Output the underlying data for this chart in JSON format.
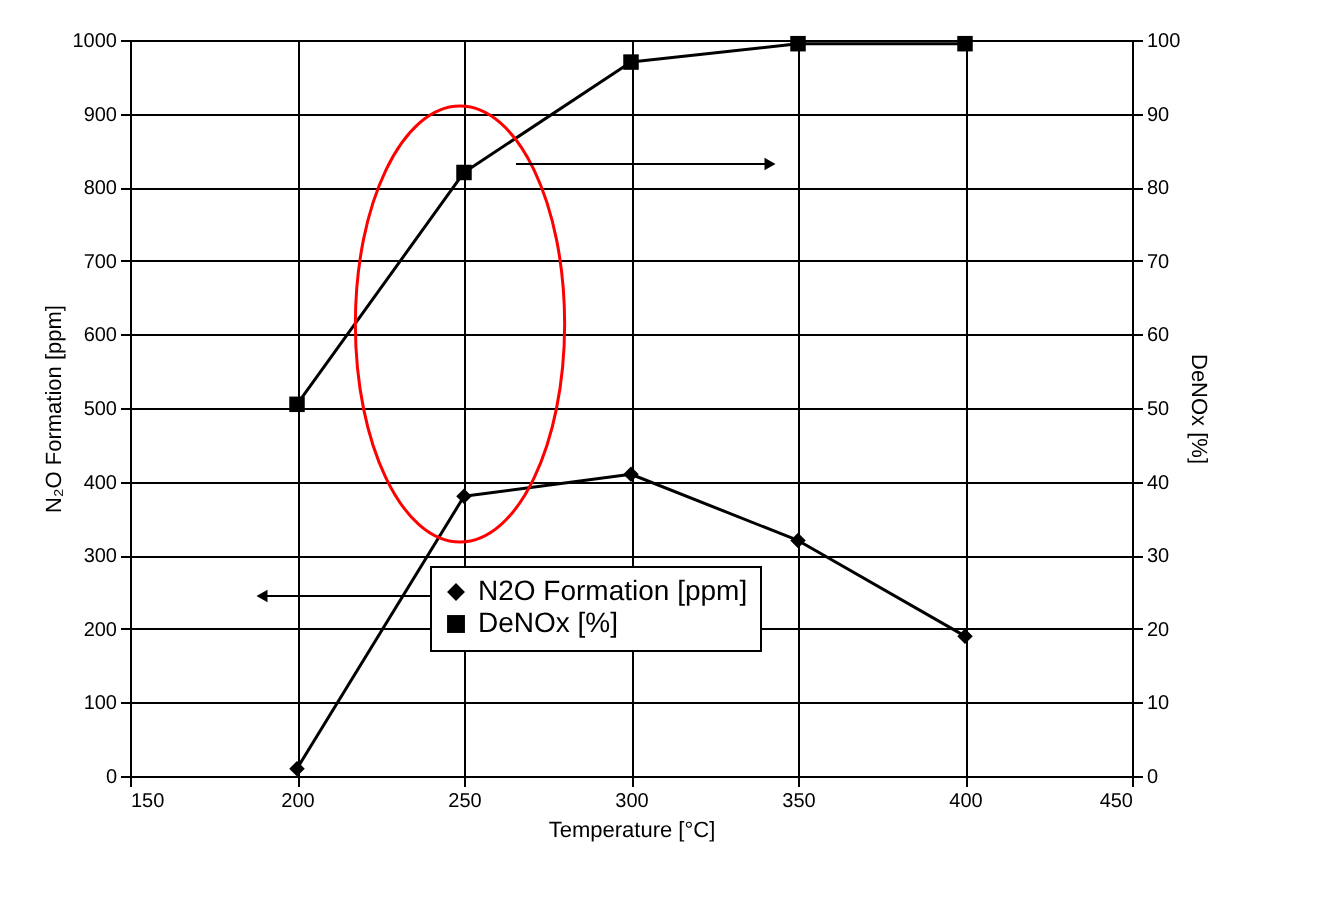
{
  "chart_data": {
    "type": "line",
    "xlabel": "Temperature  [°C]",
    "ylabel": "N₂O Formation [ppm]",
    "y2label": "DeNOx [%]",
    "x": [
      200,
      250,
      300,
      350,
      400
    ],
    "series": [
      {
        "name": "N2O Formation [ppm]",
        "color": "#000000",
        "marker": "diamond",
        "values": [
          10,
          380,
          410,
          320,
          190
        ]
      },
      {
        "name": "DeNOx [%]",
        "color": "#000000",
        "marker": "square",
        "axis": "y2",
        "values": [
          50.5,
          82,
          97,
          99.5,
          99.5
        ]
      }
    ],
    "xlim": [
      150,
      450
    ],
    "xticks": [
      150,
      200,
      250,
      300,
      350,
      400,
      450
    ],
    "ylim": [
      0,
      1000
    ],
    "yticks": [
      0,
      100,
      200,
      300,
      400,
      500,
      600,
      700,
      800,
      900,
      1000
    ],
    "y2lim": [
      0,
      100
    ],
    "y2ticks": [
      0,
      10,
      20,
      30,
      40,
      50,
      60,
      70,
      80,
      90,
      100
    ],
    "grid": true,
    "legend": "bottom",
    "line_style": "solid"
  }
}
